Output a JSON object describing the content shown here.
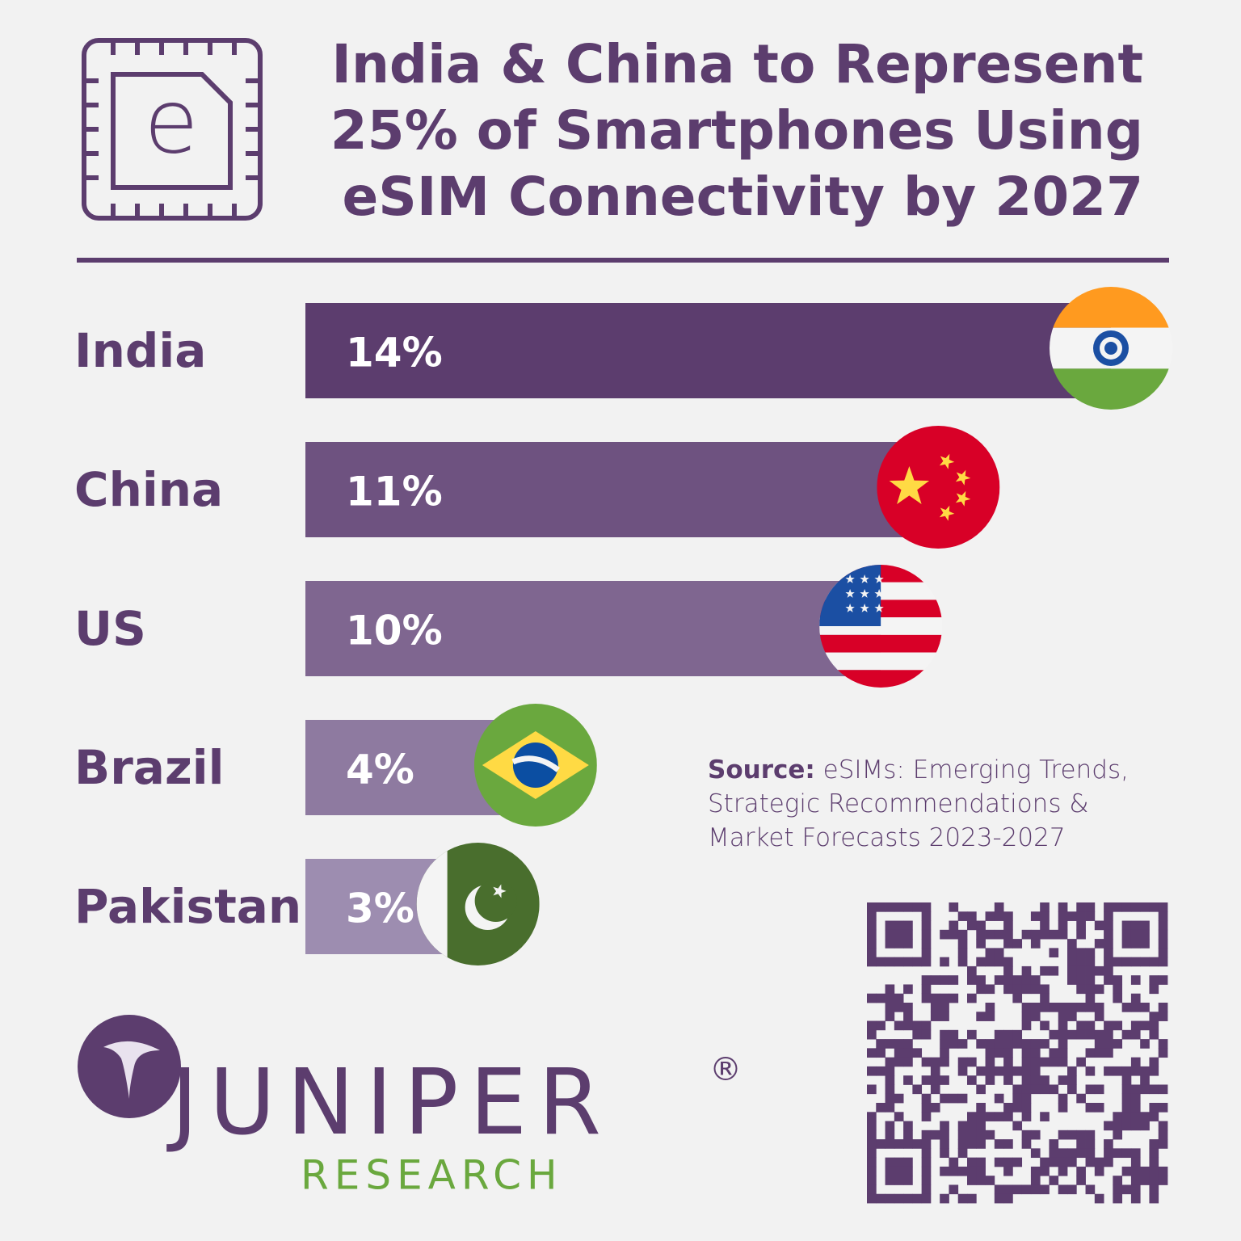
{
  "chart_data": {
    "type": "bar",
    "title": [
      "India & China to Represent",
      "25% of Smartphones Using",
      "eSIM Connectivity by 2027"
    ],
    "icon_label": "e",
    "categories": [
      "India",
      "China",
      "US",
      "Brazil",
      "Pakistan"
    ],
    "values": [
      14,
      11,
      10,
      4,
      3
    ],
    "value_labels": [
      "14%",
      "11%",
      "10%",
      "4%",
      "3%"
    ],
    "colors": [
      "#5c3d6e",
      "#6e5280",
      "#7f6690",
      "#8e7aa0",
      "#9d8db0"
    ],
    "source_label": "Source:",
    "source_text": "eSIMs: Emerging Trends, Strategic Recommendations & Market Forecasts 2023-2027",
    "brand": "JUNIPER",
    "brand_mark": "®",
    "brand_sub": "RESEARCH"
  }
}
